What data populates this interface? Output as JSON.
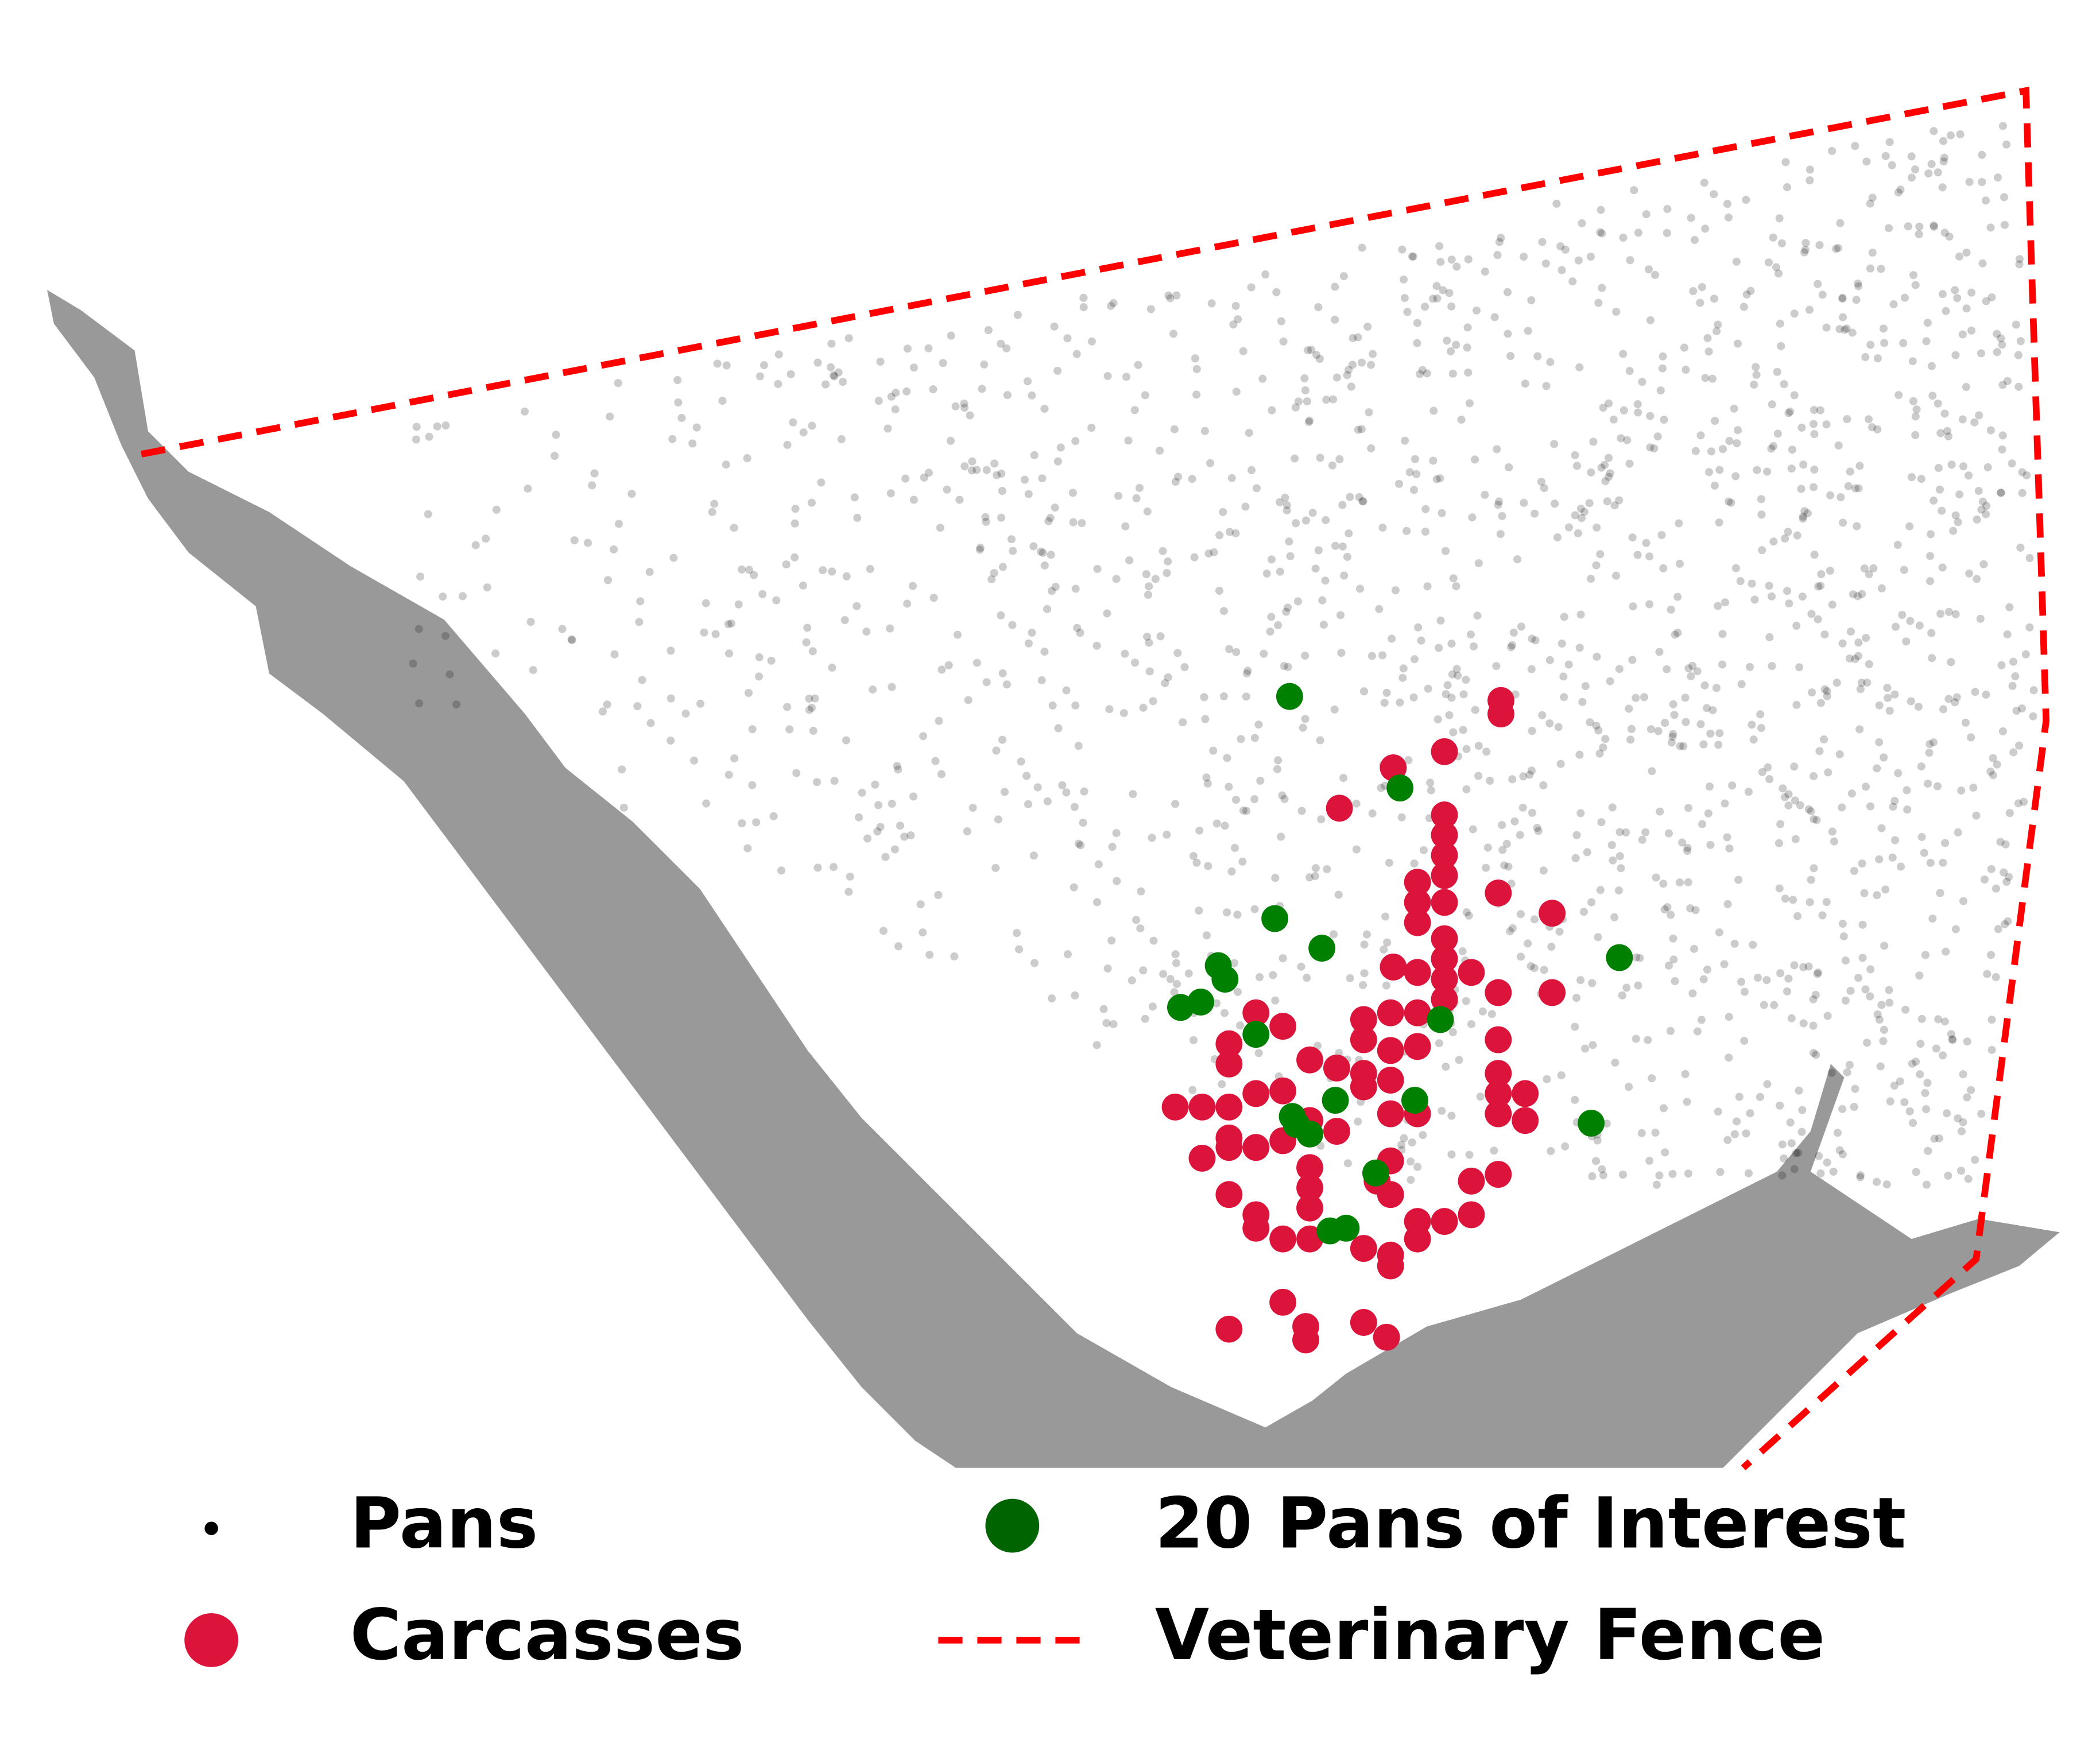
{
  "legend": {
    "items": [
      "Pans",
      "Carcasses",
      "20 Pans of Interest",
      "Veterinary Fence"
    ]
  }
}
